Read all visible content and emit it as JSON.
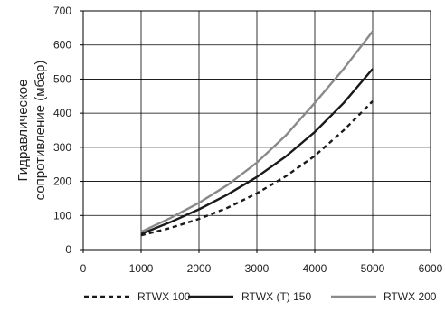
{
  "chart_data": {
    "type": "line",
    "title": "",
    "xlabel": "",
    "ylabel_lines": [
      "Гидравлическое",
      "сопротивление (мбар)"
    ],
    "xlim": [
      0,
      6000
    ],
    "ylim": [
      0,
      700
    ],
    "x_ticks": [
      0,
      1000,
      2000,
      3000,
      4000,
      5000,
      6000
    ],
    "y_ticks": [
      0,
      100,
      200,
      300,
      400,
      500,
      600,
      700
    ],
    "grid": "both",
    "legend_position": "bottom",
    "series": [
      {
        "name": "RTWX 100",
        "color": "#1a1a1a",
        "dash": "dashed",
        "x": [
          1000,
          1500,
          2000,
          2500,
          3000,
          3500,
          4000,
          4500,
          5000
        ],
        "y": [
          42,
          63,
          90,
          123,
          165,
          215,
          275,
          350,
          435
        ]
      },
      {
        "name": "RTWX (T) 150",
        "color": "#1a1a1a",
        "dash": "solid",
        "x": [
          1000,
          1500,
          2000,
          2500,
          3000,
          3500,
          4000,
          4500,
          5000
        ],
        "y": [
          46,
          80,
          118,
          162,
          213,
          273,
          345,
          430,
          530
        ]
      },
      {
        "name": "RTWX 200",
        "color": "#8a8a8a",
        "dash": "solid",
        "x": [
          1000,
          1500,
          2000,
          2500,
          3000,
          3500,
          4000,
          4500,
          5000
        ],
        "y": [
          52,
          92,
          137,
          190,
          255,
          335,
          430,
          530,
          640
        ]
      }
    ]
  }
}
